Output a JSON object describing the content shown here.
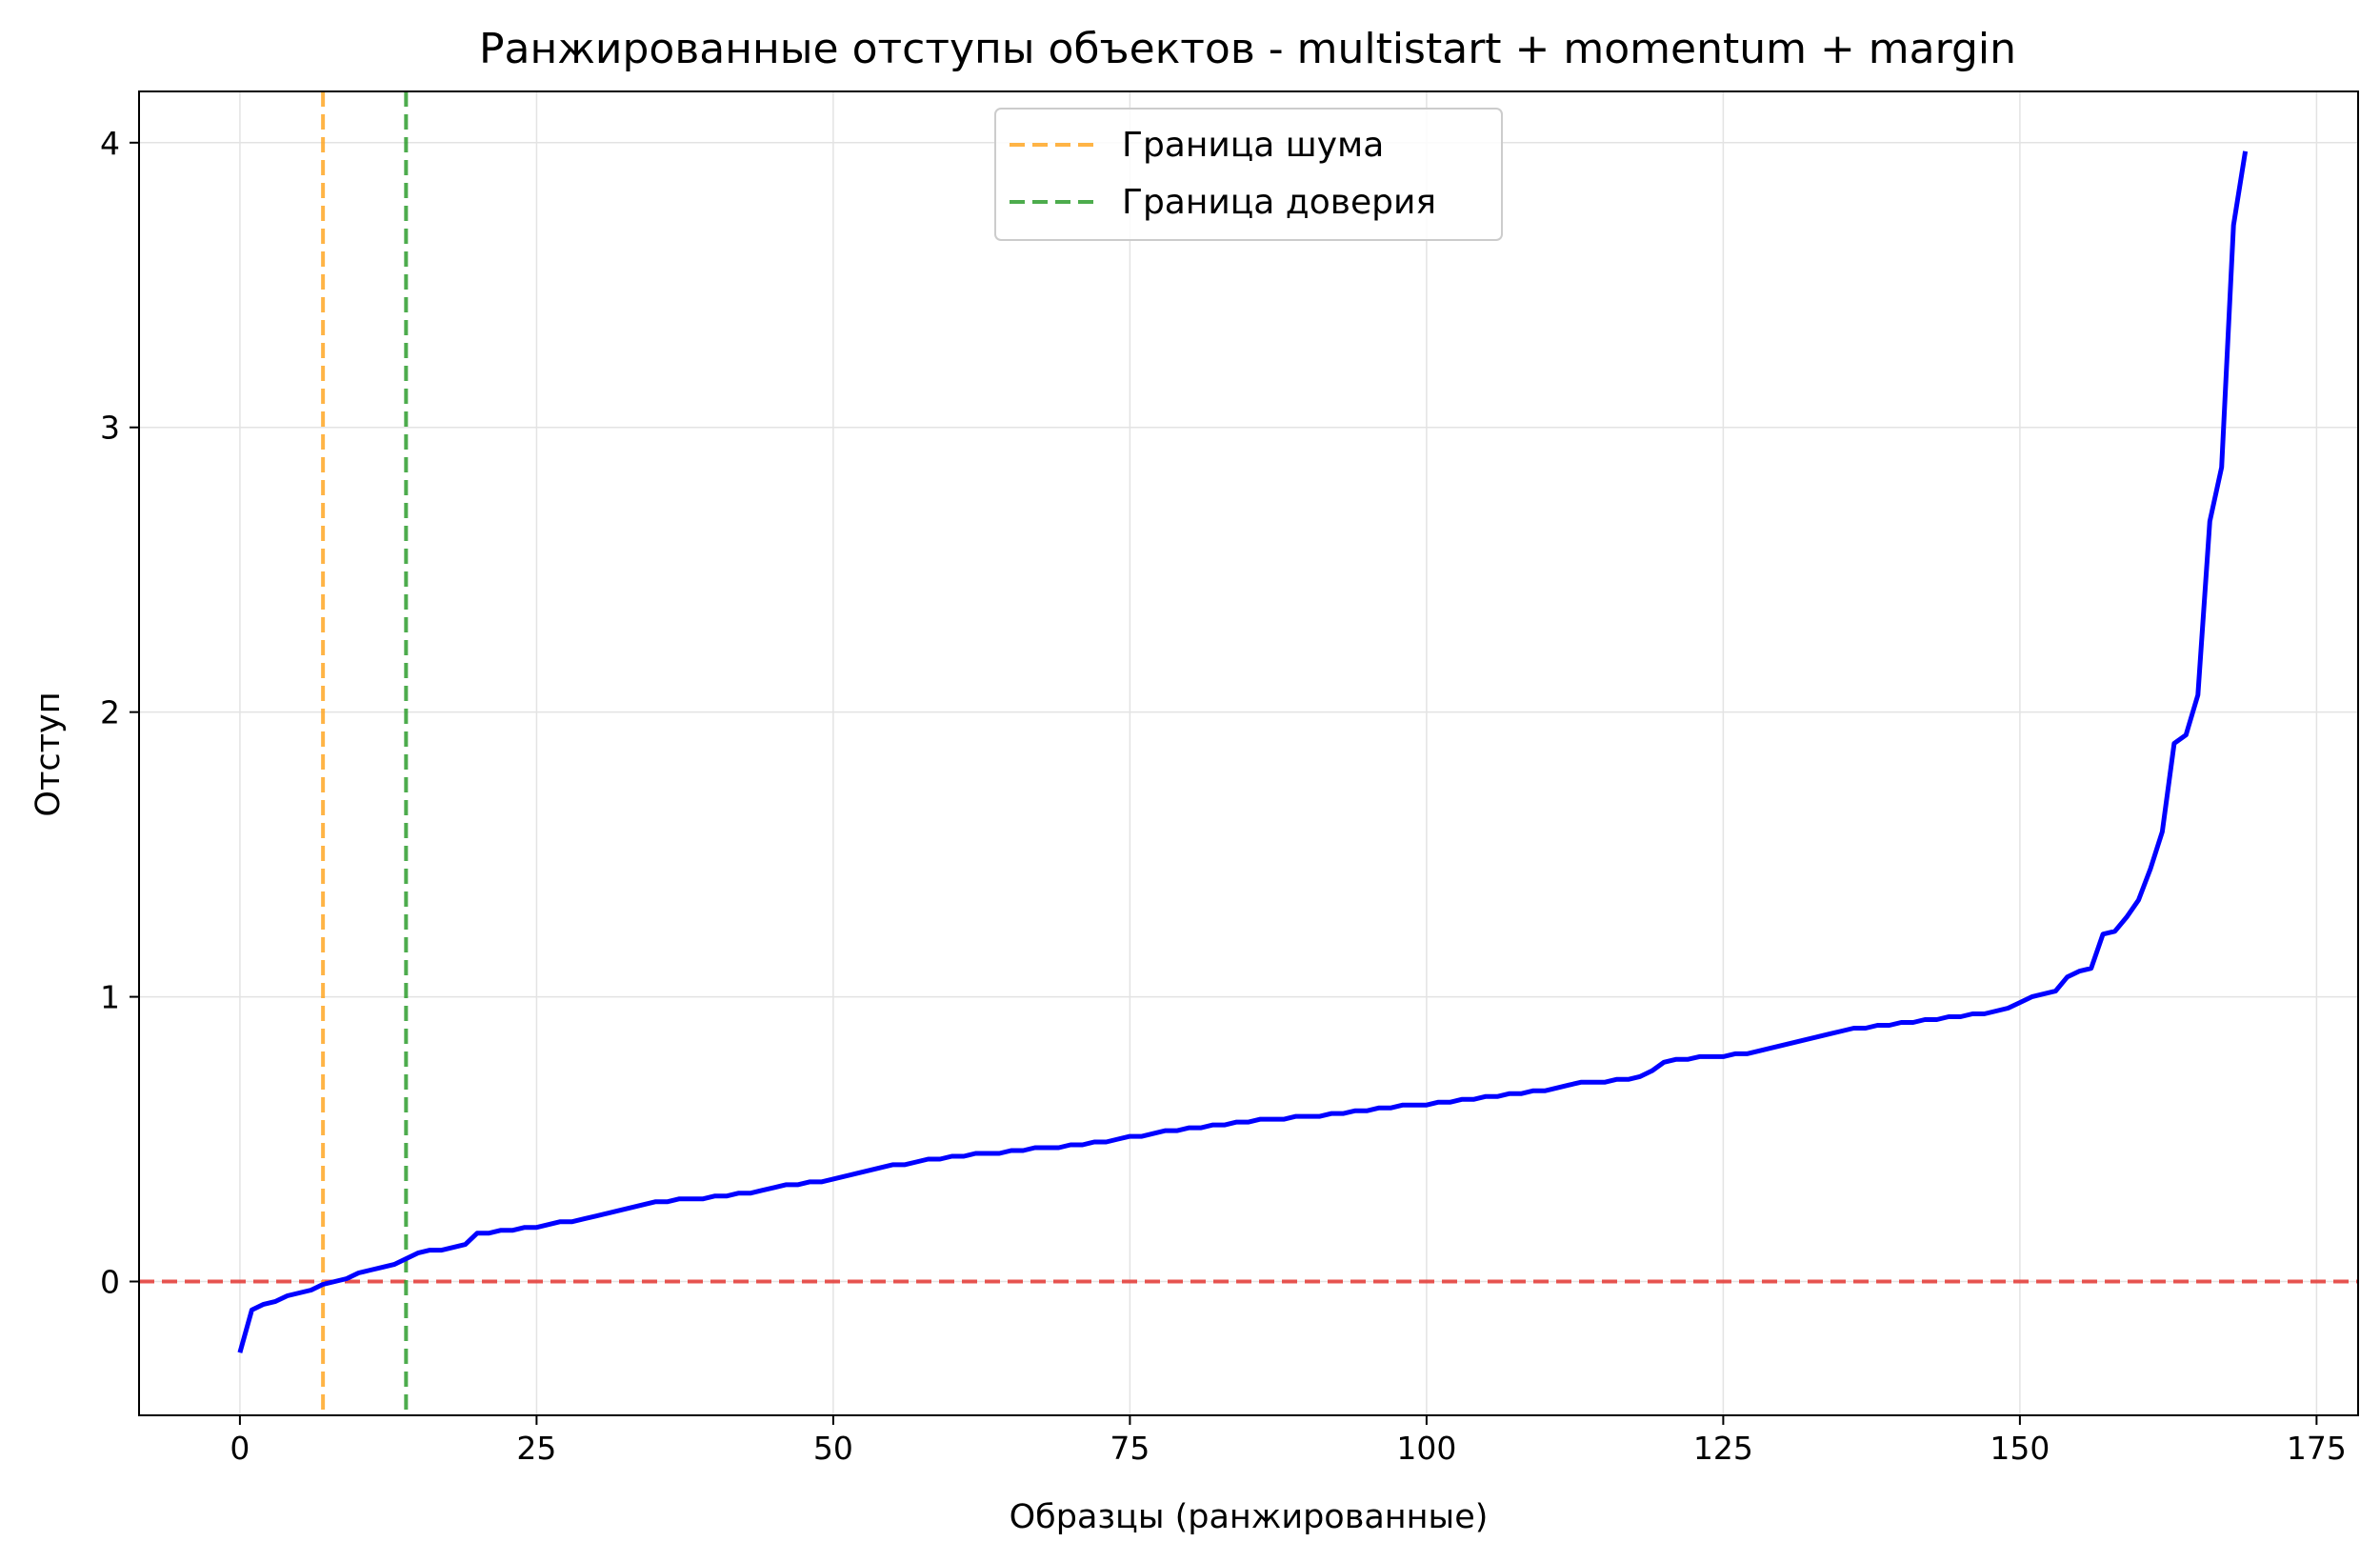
{
  "chart_data": {
    "type": "line",
    "title": "Ранжированные отступы объектов - multistart + momentum + margin",
    "xlabel": "Образцы (ранжированные)",
    "ylabel": "Отступ",
    "xlim": [
      -8.5,
      178.5
    ],
    "ylim": [
      -0.47,
      4.18
    ],
    "x_ticks": [
      0,
      25,
      50,
      75,
      100,
      125,
      150,
      175
    ],
    "y_ticks": [
      0,
      1,
      2,
      3,
      4
    ],
    "grid": true,
    "legend_position": "top-center",
    "reference_lines": [
      {
        "orientation": "horizontal",
        "value": 0,
        "color": "#e53935",
        "style": "dashed"
      },
      {
        "orientation": "vertical",
        "value": 7,
        "color": "#ffa726",
        "style": "dashed",
        "label": "Граница шума"
      },
      {
        "orientation": "vertical",
        "value": 14,
        "color": "#2e9e2e",
        "style": "dashed",
        "label": "Граница доверия"
      }
    ],
    "series": [
      {
        "color": "#0000ff",
        "y": [
          -0.25,
          -0.1,
          -0.08,
          -0.07,
          -0.05,
          -0.04,
          -0.03,
          -0.01,
          0.0,
          0.01,
          0.03,
          0.04,
          0.05,
          0.06,
          0.08,
          0.1,
          0.11,
          0.11,
          0.12,
          0.13,
          0.17,
          0.17,
          0.18,
          0.18,
          0.19,
          0.19,
          0.2,
          0.21,
          0.21,
          0.22,
          0.23,
          0.24,
          0.25,
          0.26,
          0.27,
          0.28,
          0.28,
          0.29,
          0.29,
          0.29,
          0.3,
          0.3,
          0.31,
          0.31,
          0.32,
          0.33,
          0.34,
          0.34,
          0.35,
          0.35,
          0.36,
          0.37,
          0.38,
          0.39,
          0.4,
          0.41,
          0.41,
          0.42,
          0.43,
          0.43,
          0.44,
          0.44,
          0.45,
          0.45,
          0.45,
          0.46,
          0.46,
          0.47,
          0.47,
          0.47,
          0.48,
          0.48,
          0.49,
          0.49,
          0.5,
          0.51,
          0.51,
          0.52,
          0.53,
          0.53,
          0.54,
          0.54,
          0.55,
          0.55,
          0.56,
          0.56,
          0.57,
          0.57,
          0.57,
          0.58,
          0.58,
          0.58,
          0.59,
          0.59,
          0.6,
          0.6,
          0.61,
          0.61,
          0.62,
          0.62,
          0.62,
          0.63,
          0.63,
          0.64,
          0.64,
          0.65,
          0.65,
          0.66,
          0.66,
          0.67,
          0.67,
          0.68,
          0.69,
          0.7,
          0.7,
          0.7,
          0.71,
          0.71,
          0.72,
          0.74,
          0.77,
          0.78,
          0.78,
          0.79,
          0.79,
          0.79,
          0.8,
          0.8,
          0.81,
          0.82,
          0.83,
          0.84,
          0.85,
          0.86,
          0.87,
          0.88,
          0.89,
          0.89,
          0.9,
          0.9,
          0.91,
          0.91,
          0.92,
          0.92,
          0.93,
          0.93,
          0.94,
          0.94,
          0.95,
          0.96,
          0.98,
          1.0,
          1.01,
          1.02,
          1.07,
          1.09,
          1.1,
          1.22,
          1.23,
          1.28,
          1.34,
          1.45,
          1.58,
          1.89,
          1.92,
          2.06,
          2.67,
          2.86,
          3.71,
          3.97
        ]
      }
    ]
  }
}
